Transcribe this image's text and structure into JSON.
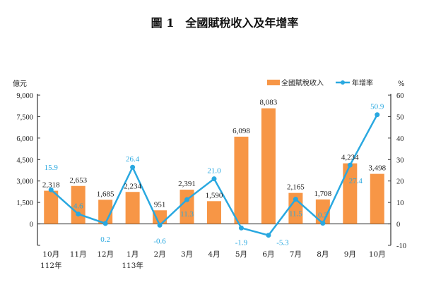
{
  "chart_data": {
    "type": "bar+line",
    "title": "圖 1　全國賦稅收入及年增率",
    "categories": [
      "10月",
      "11月",
      "12月",
      "1月",
      "2月",
      "3月",
      "4月",
      "5月",
      "6月",
      "7月",
      "8月",
      "9月",
      "10月"
    ],
    "year_labels": [
      {
        "index": 0,
        "label": "112年"
      },
      {
        "index": 3,
        "label": "113年"
      }
    ],
    "series": [
      {
        "name": "全國賦稅收入",
        "type": "bar",
        "axis": "left",
        "color": "#f79646",
        "values": [
          2318,
          2653,
          1685,
          2234,
          951,
          2391,
          1590,
          6098,
          8083,
          2165,
          1708,
          4234,
          3498
        ],
        "labels": [
          "2,318",
          "2,653",
          "1,685",
          "2,234",
          "951",
          "2,391",
          "1,590",
          "6,098",
          "8,083",
          "2,165",
          "1,708",
          "4,234",
          "3,498"
        ]
      },
      {
        "name": "年增率",
        "type": "line",
        "axis": "right",
        "color": "#29a8e0",
        "values": [
          15.9,
          4.6,
          0.2,
          26.4,
          -0.6,
          11.3,
          21.0,
          -1.9,
          -5.3,
          11.5,
          0.3,
          27.4,
          50.9
        ],
        "labels": [
          "15.9",
          "4.6",
          "0.2",
          "26.4",
          "-0.6",
          "11.3",
          "21.0",
          "-1.9",
          "-5.3",
          "11.5",
          "0.3",
          "27.4",
          "50.9"
        ]
      }
    ],
    "left_axis": {
      "unit": "億元",
      "ylim": [
        -1500,
        9000
      ],
      "ticks": [
        0,
        1500,
        3000,
        4500,
        6000,
        7500,
        9000
      ],
      "tick_labels": [
        "0",
        "1,500",
        "3,000",
        "4,500",
        "6,000",
        "7,500",
        "9,000"
      ]
    },
    "right_axis": {
      "unit": "%",
      "ylim": [
        -10,
        60
      ],
      "ticks": [
        -10,
        0,
        10,
        20,
        30,
        40,
        50,
        60
      ],
      "tick_labels": [
        "-10",
        "0",
        "10",
        "20",
        "30",
        "40",
        "50",
        "60"
      ]
    },
    "legend": {
      "placement": "top-right",
      "entries": [
        "全國賦稅收入",
        "年增率"
      ]
    },
    "grid": false
  }
}
